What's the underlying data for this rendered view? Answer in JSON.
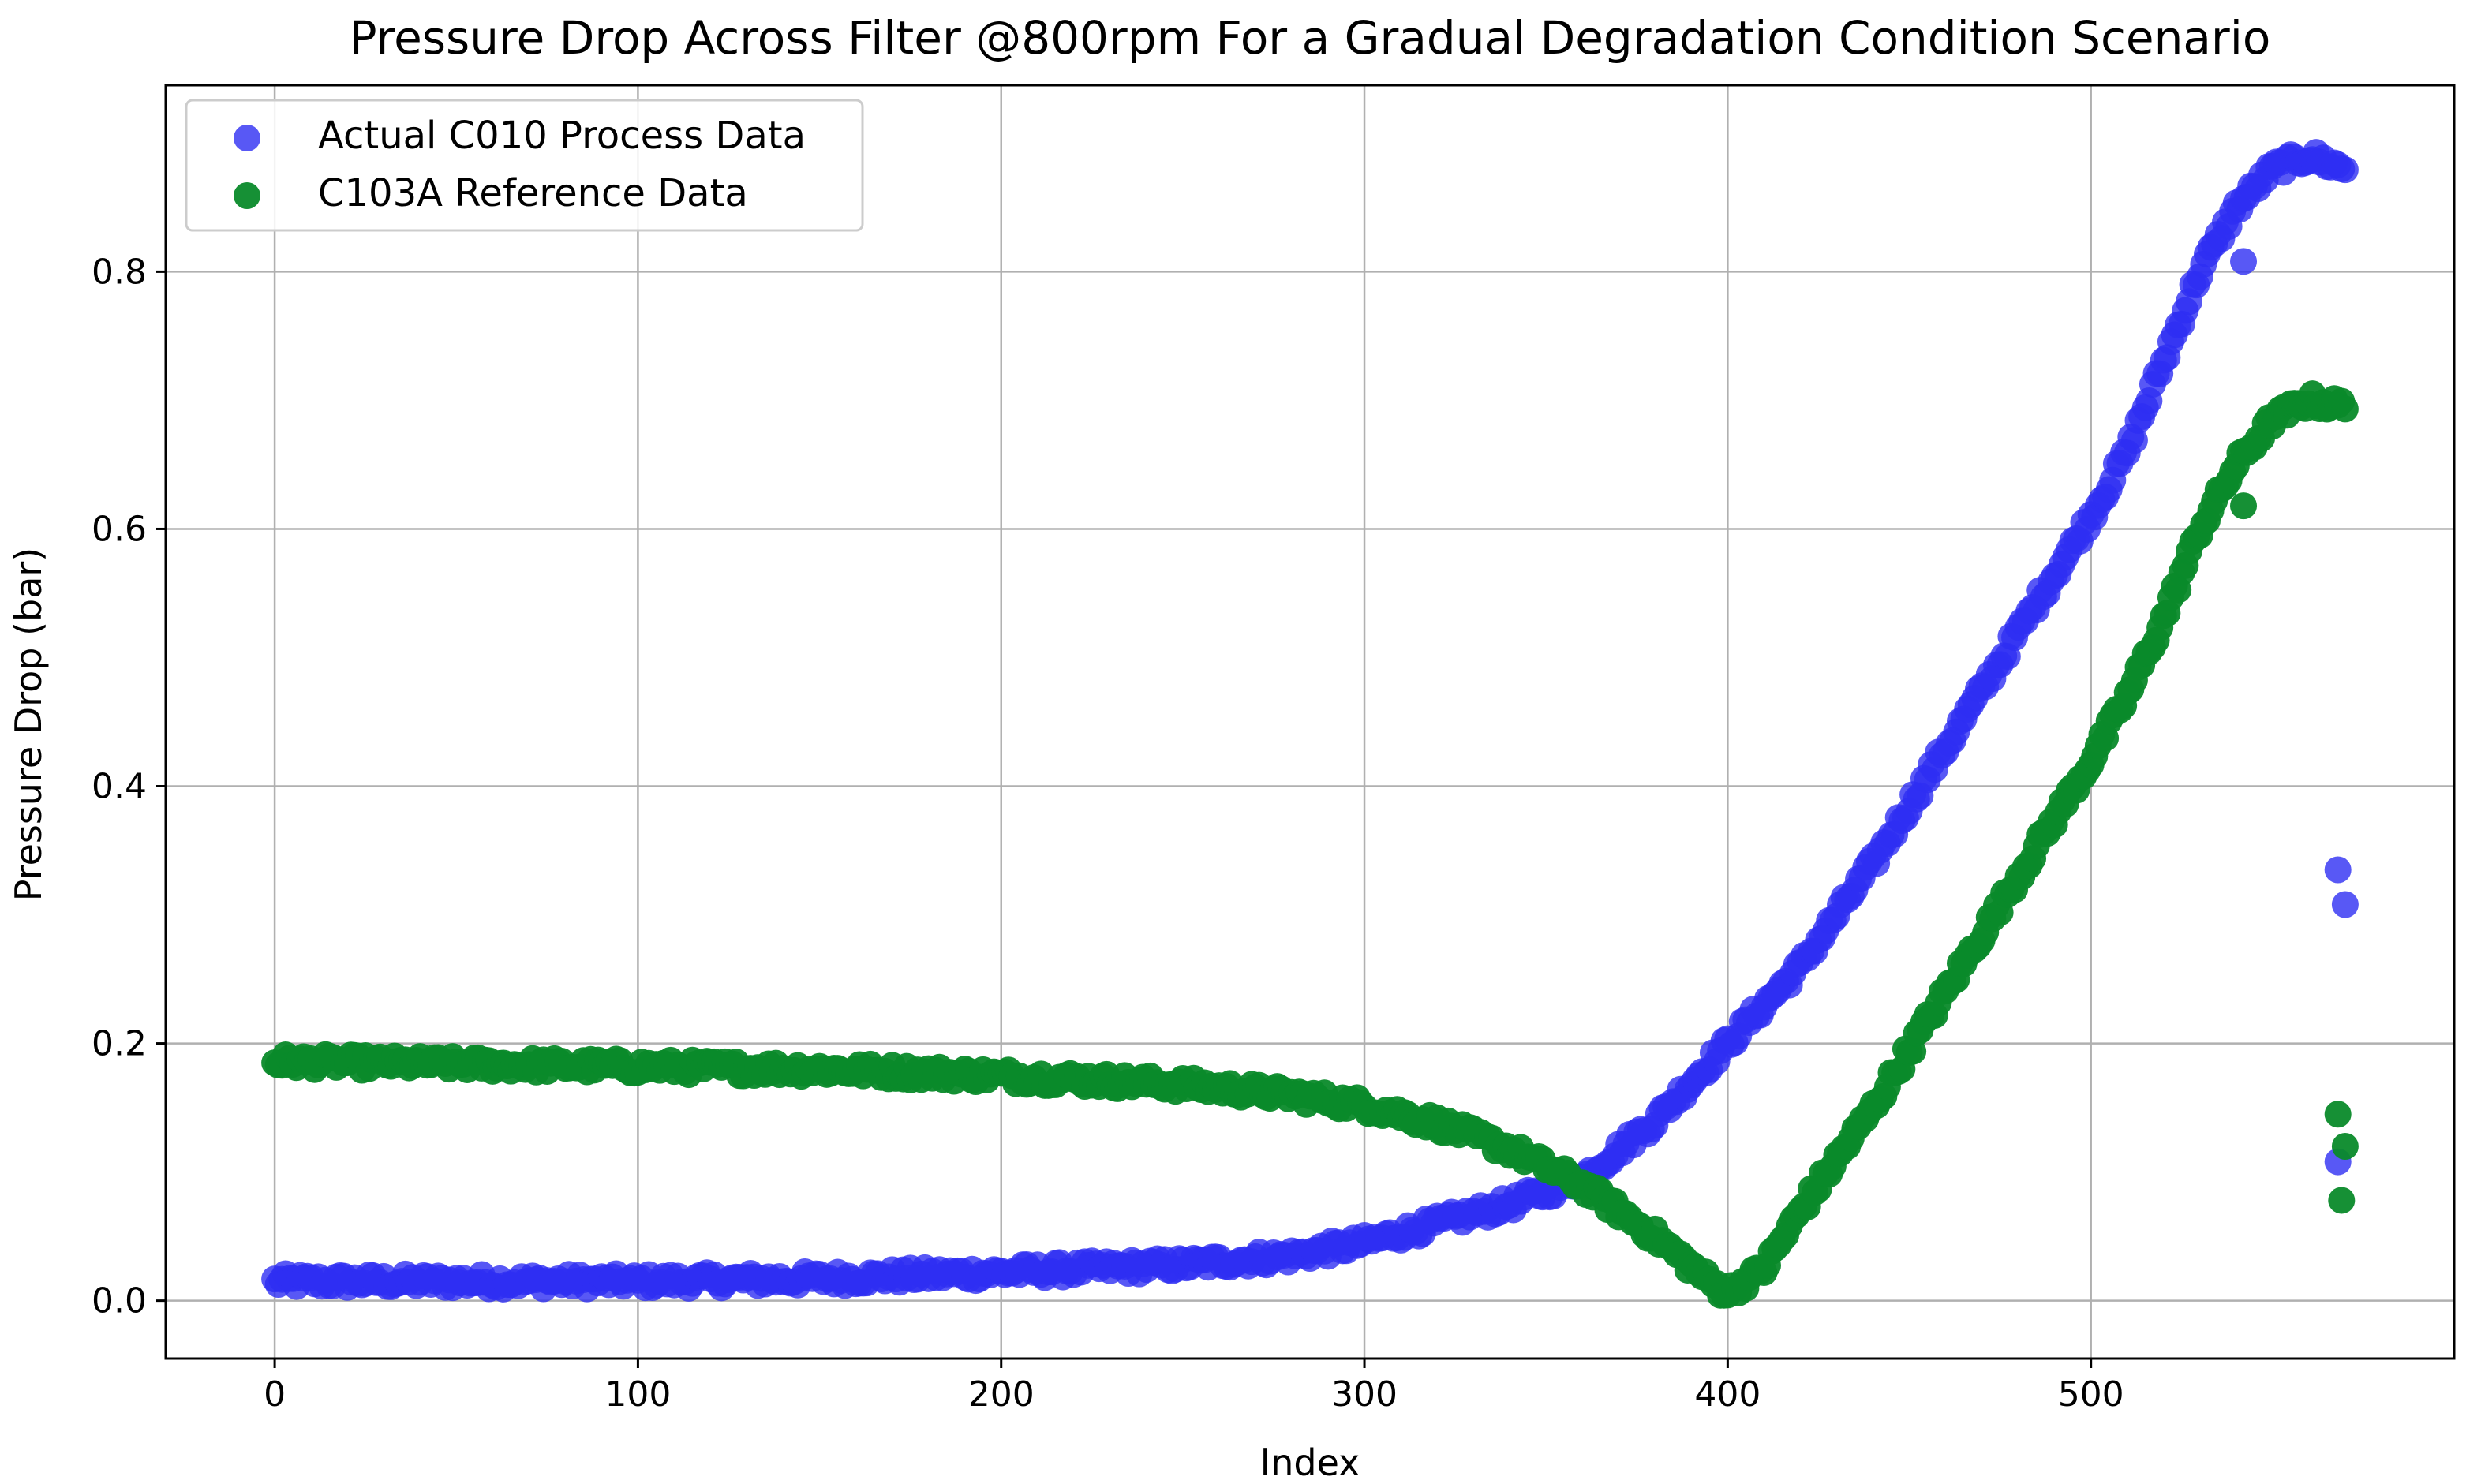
{
  "chart_data": {
    "type": "scatter",
    "title": "Pressure Drop Across Filter @800rpm For a Gradual Degradation Condition Scenario",
    "xlabel": "Index",
    "ylabel": "Pressure Drop (bar)",
    "xlim": [
      -30,
      600
    ],
    "ylim": [
      -0.045,
      0.945
    ],
    "xticks": [
      0,
      100,
      200,
      300,
      400,
      500
    ],
    "xtick_labels": [
      "0",
      "100",
      "200",
      "300",
      "400",
      "500"
    ],
    "yticks": [
      0.0,
      0.2,
      0.4,
      0.6,
      0.8
    ],
    "ytick_labels": [
      "0.0",
      "0.2",
      "0.4",
      "0.6",
      "0.8"
    ],
    "grid": true,
    "legend_location": "upper-left",
    "series": [
      {
        "name": "Actual C010 Process Data",
        "color": "#2e2ef2",
        "opacity": 0.8,
        "x_range": [
          0,
          570
        ],
        "anchors": {
          "x": [
            0,
            100,
            150,
            200,
            250,
            280,
            300,
            320,
            340,
            360,
            380,
            400,
            420,
            440,
            460,
            480,
            500,
            510,
            520,
            530,
            540,
            550,
            560,
            570
          ],
          "y": [
            0.015,
            0.015,
            0.017,
            0.022,
            0.028,
            0.035,
            0.045,
            0.06,
            0.075,
            0.095,
            0.14,
            0.2,
            0.26,
            0.34,
            0.43,
            0.52,
            0.61,
            0.66,
            0.73,
            0.8,
            0.85,
            0.88,
            0.89,
            0.88
          ]
        },
        "noise": 0.006,
        "outliers": {
          "x": [
            568,
            570,
            568,
            542
          ],
          "y": [
            0.335,
            0.308,
            0.108,
            0.808
          ]
        }
      },
      {
        "name": "C103A Reference Data",
        "color": "#0a8a2a",
        "opacity": 0.95,
        "x_range": [
          0,
          570
        ],
        "anchors": {
          "x": [
            0,
            100,
            150,
            200,
            250,
            280,
            300,
            320,
            340,
            360,
            380,
            395,
            400,
            410,
            420,
            440,
            460,
            480,
            500,
            510,
            520,
            530,
            540,
            550,
            560,
            570
          ],
          "y": [
            0.186,
            0.182,
            0.18,
            0.175,
            0.168,
            0.16,
            0.152,
            0.138,
            0.118,
            0.09,
            0.05,
            0.015,
            0.006,
            0.025,
            0.07,
            0.15,
            0.24,
            0.33,
            0.42,
            0.47,
            0.53,
            0.6,
            0.65,
            0.685,
            0.7,
            0.695
          ]
        },
        "noise": 0.006,
        "outliers": {
          "x": [
            568,
            570,
            569,
            542
          ],
          "y": [
            0.145,
            0.12,
            0.078,
            0.618
          ]
        }
      }
    ]
  }
}
